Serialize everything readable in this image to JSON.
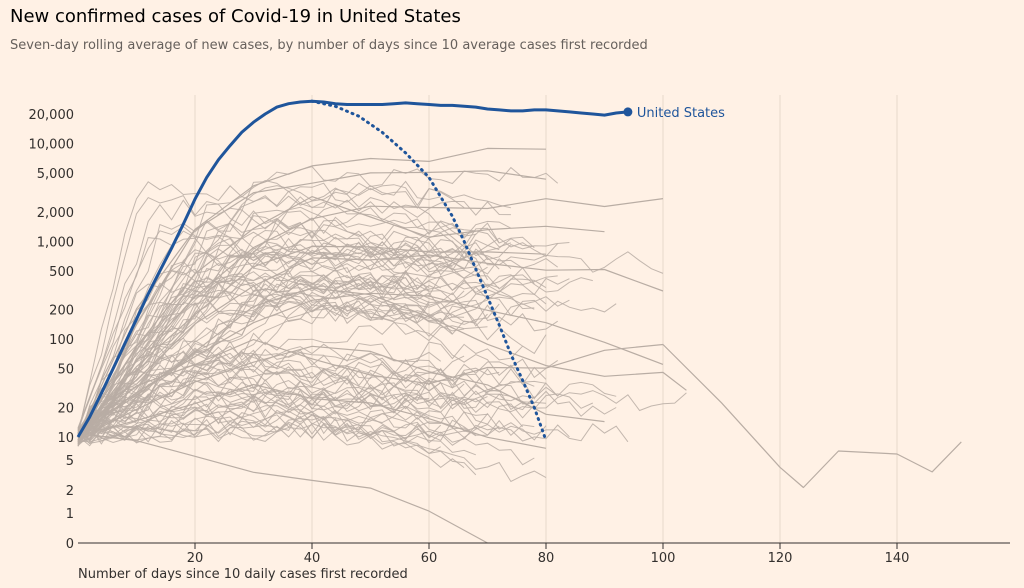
{
  "title": "New confirmed cases of Covid-19 in United States",
  "subtitle": "Seven-day rolling average of new cases, by number of days since 10 average cases first recorded",
  "colors": {
    "background": "#fff1e5",
    "highlight": "#1f559b",
    "other_countries": "#b9ada4",
    "dotted_reference": "#1f559b",
    "grid": "#e7d9cc",
    "axis": "#33302e"
  },
  "chart_data": {
    "type": "line",
    "title": "New confirmed cases of Covid-19 in United States",
    "xlabel": "Number of days since 10 daily cases first recorded",
    "ylabel": "",
    "y_scale": "log",
    "xlim": [
      0,
      160
    ],
    "ylim": [
      0,
      25000
    ],
    "x_ticks": [
      20,
      40,
      60,
      80,
      100,
      120,
      140
    ],
    "x_tick_labels": [
      "20",
      "40",
      "60",
      "80",
      "100",
      "120",
      "140"
    ],
    "y_ticks": [
      0,
      1,
      2,
      5,
      10,
      20,
      50,
      100,
      200,
      500,
      1000,
      2000,
      5000,
      10000,
      20000
    ],
    "y_tick_labels": [
      "0",
      "1",
      "2",
      "5",
      "10",
      "20",
      "50",
      "100",
      "200",
      "500",
      "1,000",
      "2,000",
      "5,000",
      "10,000",
      "20,000"
    ],
    "grid": "vertical",
    "series": [
      {
        "name": "United States",
        "highlight": true,
        "x": [
          0,
          2,
          4,
          6,
          8,
          10,
          12,
          14,
          16,
          18,
          20,
          22,
          24,
          26,
          28,
          30,
          32,
          34,
          36,
          38,
          40,
          42,
          44,
          46,
          48,
          50,
          52,
          54,
          56,
          58,
          60,
          62,
          64,
          66,
          68,
          70,
          72,
          74,
          76,
          78,
          80,
          82,
          84,
          86,
          88,
          90,
          92,
          94
        ],
        "values": [
          10,
          16,
          28,
          50,
          90,
          160,
          290,
          500,
          850,
          1500,
          2700,
          4500,
          6800,
          9500,
          13000,
          16500,
          20000,
          23500,
          25500,
          26500,
          27000,
          26500,
          25500,
          25000,
          25000,
          25000,
          25000,
          25500,
          26000,
          25500,
          25000,
          24500,
          24500,
          24000,
          23500,
          22500,
          22000,
          21500,
          21500,
          22000,
          22000,
          21500,
          21000,
          20500,
          20000,
          19500,
          20500,
          21000
        ]
      },
      {
        "name": "",
        "style": "dotted",
        "x": [
          40,
          44,
          48,
          52,
          56,
          60,
          64,
          66,
          68,
          70,
          72,
          74,
          76,
          78,
          80
        ],
        "values": [
          27000,
          24000,
          19000,
          13000,
          8000,
          4500,
          1800,
          1000,
          520,
          270,
          140,
          70,
          38,
          20,
          9
        ]
      },
      {
        "name": "",
        "color": "grey",
        "x": [
          0,
          10,
          20,
          30,
          40,
          50,
          60,
          70,
          80
        ],
        "values": [
          10,
          200,
          1500,
          4000,
          6000,
          7000,
          7500,
          8000,
          8500
        ]
      },
      {
        "name": "",
        "color": "grey",
        "x": [
          0,
          10,
          20,
          30,
          40,
          50,
          60,
          70,
          80
        ],
        "values": [
          10,
          150,
          1200,
          3000,
          4500,
          5000,
          5500,
          5000,
          4800
        ]
      },
      {
        "name": "",
        "color": "grey",
        "x": [
          0,
          10,
          20,
          30,
          40,
          50,
          60,
          70,
          80,
          90,
          100
        ],
        "values": [
          10,
          60,
          300,
          1000,
          1500,
          2000,
          2500,
          2200,
          2400,
          2500,
          2800
        ]
      },
      {
        "name": "",
        "color": "grey",
        "x": [
          0,
          10,
          20,
          30,
          40,
          50,
          60,
          70,
          80,
          90
        ],
        "values": [
          10,
          80,
          500,
          1500,
          2500,
          1800,
          1200,
          1300,
          1500,
          1400
        ]
      },
      {
        "name": "",
        "color": "grey",
        "x": [
          0,
          10,
          20,
          30,
          40,
          50,
          60,
          70,
          80,
          90,
          100
        ],
        "values": [
          10,
          40,
          150,
          400,
          600,
          700,
          650,
          600,
          550,
          500,
          320
        ]
      },
      {
        "name": "",
        "color": "grey",
        "x": [
          0,
          10,
          20,
          30,
          40,
          50,
          60,
          70,
          80
        ],
        "values": [
          10,
          50,
          200,
          600,
          900,
          1000,
          900,
          800,
          700
        ]
      },
      {
        "name": "",
        "color": "grey",
        "x": [
          0,
          10,
          20,
          30,
          40,
          50,
          60,
          70,
          80,
          90,
          100
        ],
        "values": [
          10,
          25,
          70,
          150,
          250,
          300,
          250,
          200,
          150,
          100,
          60
        ]
      },
      {
        "name": "",
        "color": "grey",
        "x": [
          0,
          10,
          20,
          30,
          40,
          50,
          60,
          70,
          80,
          90,
          100,
          104
        ],
        "values": [
          10,
          30,
          80,
          200,
          300,
          250,
          150,
          80,
          50,
          40,
          45,
          35
        ]
      },
      {
        "name": "",
        "color": "grey",
        "x": [
          0,
          10,
          20,
          30,
          40,
          50,
          60,
          70,
          80,
          90
        ],
        "values": [
          10,
          20,
          40,
          60,
          80,
          70,
          50,
          30,
          20,
          15
        ]
      },
      {
        "name": "",
        "color": "grey",
        "x": [
          0,
          10,
          20,
          30,
          40,
          50,
          60,
          70,
          80
        ],
        "values": [
          10,
          15,
          25,
          30,
          25,
          20,
          15,
          10,
          8
        ]
      },
      {
        "name": "",
        "color": "grey",
        "x": [
          0,
          10,
          20,
          30,
          40,
          50,
          60,
          70
        ],
        "values": [
          10,
          8,
          6,
          4,
          3,
          2,
          1,
          0
        ]
      },
      {
        "name": "",
        "color": "grey",
        "x": [
          0,
          10,
          20,
          30,
          40,
          50,
          60,
          70,
          80,
          90,
          100,
          110,
          120,
          124,
          130,
          140,
          146,
          151
        ],
        "values": [
          10,
          30,
          60,
          90,
          70,
          50,
          40,
          60,
          50,
          70,
          80,
          25,
          4,
          2.5,
          7,
          6,
          4,
          9
        ]
      }
    ]
  }
}
